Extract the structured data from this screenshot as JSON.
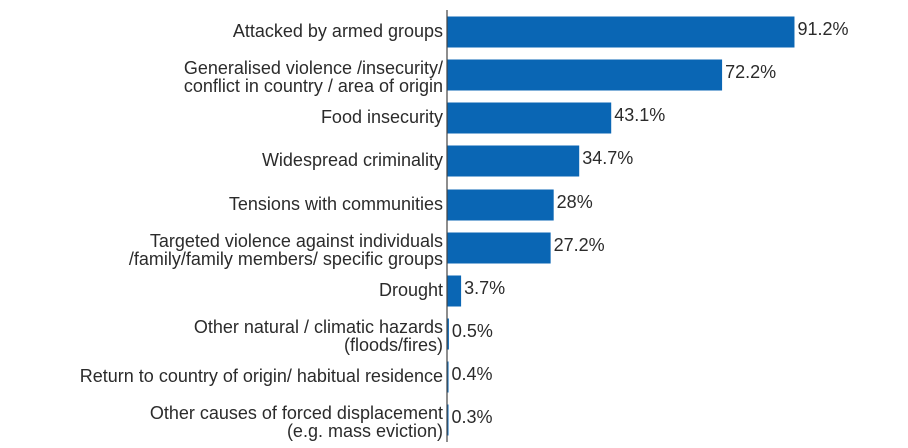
{
  "chart_data": {
    "type": "bar",
    "orientation": "horizontal",
    "categories": [
      [
        "Attacked by armed groups"
      ],
      [
        "Generalised violence /insecurity/",
        "conflict in country / area of origin"
      ],
      [
        "Food insecurity"
      ],
      [
        "Widespread criminality"
      ],
      [
        "Tensions with communities"
      ],
      [
        "Targeted violence against individuals",
        "/family/family members/ specific groups"
      ],
      [
        "Drought"
      ],
      [
        "Other natural / climatic hazards",
        "(floods/fires)"
      ],
      [
        "Return to country of origin/ habitual residence"
      ],
      [
        "Other causes of forced displacement",
        "(e.g. mass eviction)"
      ]
    ],
    "values": [
      91.2,
      72.2,
      43.1,
      34.7,
      28,
      27.2,
      3.7,
      0.5,
      0.4,
      0.3
    ],
    "value_labels": [
      "91.2%",
      "72.2%",
      "43.1%",
      "34.7%",
      "28%",
      "27.2%",
      "3.7%",
      "0.5%",
      "0.4%",
      "0.3%"
    ],
    "xlim": [
      0,
      100
    ],
    "bar_color": "#0a66b4",
    "axis_color": "#444444",
    "grid": false,
    "legend": "none"
  }
}
